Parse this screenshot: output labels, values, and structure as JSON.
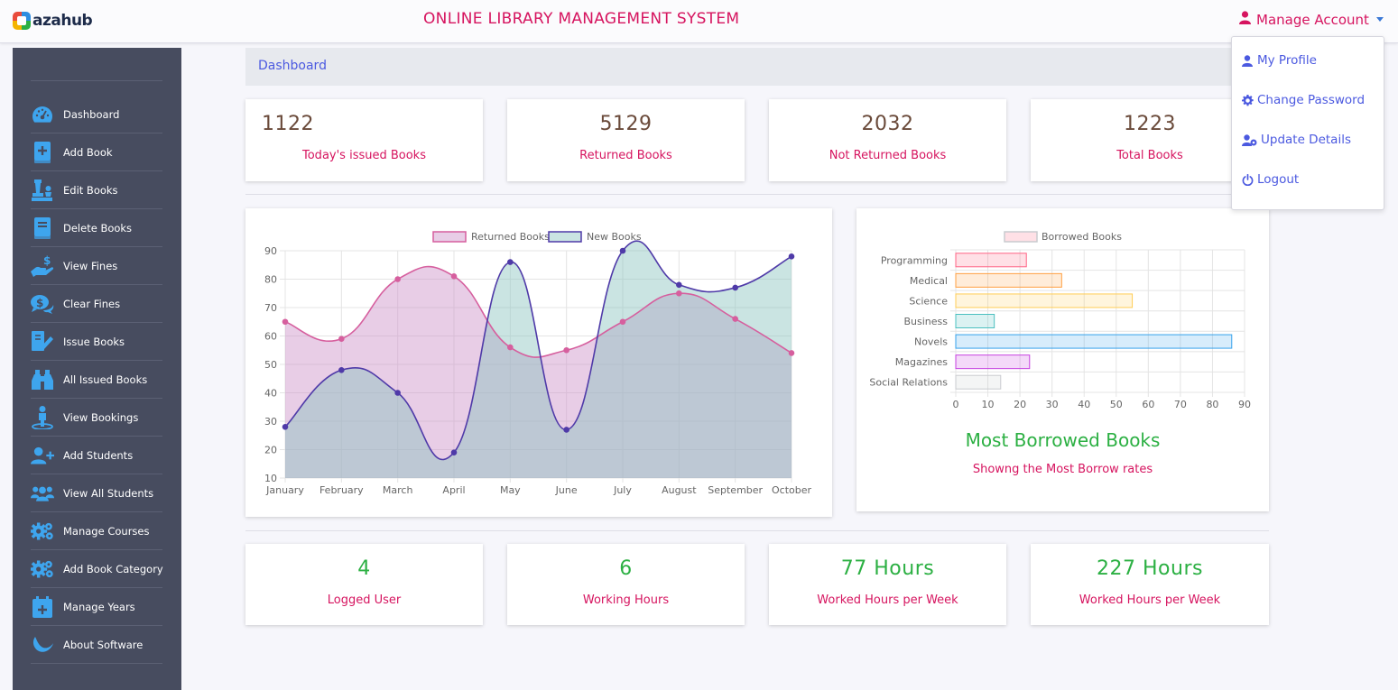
{
  "header": {
    "logo_text": "azahub",
    "app_title": "ONLINE LIBRARY MANAGEMENT SYSTEM",
    "manage_account": "Manage Account"
  },
  "dropdown": {
    "items": [
      {
        "label": "My Profile",
        "icon": "user-icon"
      },
      {
        "label": "Change Password",
        "icon": "gear-icon"
      },
      {
        "label": "Update Details",
        "icon": "user-cog-icon"
      },
      {
        "label": "Logout",
        "icon": "power-icon"
      }
    ]
  },
  "sidebar": {
    "items": [
      {
        "label": "Dashboard",
        "icon": "speedometer-icon"
      },
      {
        "label": "Add Book",
        "icon": "book-plus-icon"
      },
      {
        "label": "Edit Books",
        "icon": "chess-pieces-icon"
      },
      {
        "label": "Delete Books",
        "icon": "book-icon"
      },
      {
        "label": "View Fines",
        "icon": "hand-dollar-icon"
      },
      {
        "label": "Clear Fines",
        "icon": "dollar-chat-icon"
      },
      {
        "label": "Issue Books",
        "icon": "book-pen-icon"
      },
      {
        "label": "All Issued Books",
        "icon": "binoculars-icon"
      },
      {
        "label": "View Bookings",
        "icon": "person-location-icon"
      },
      {
        "label": "Add Students",
        "icon": "user-plus-icon"
      },
      {
        "label": "View All Students",
        "icon": "users-icon"
      },
      {
        "label": "Manage Courses",
        "icon": "gears-icon"
      },
      {
        "label": "Add Book Category",
        "icon": "gears-icon"
      },
      {
        "label": "Manage Years",
        "icon": "calendar-plus-icon"
      },
      {
        "label": "About Software",
        "icon": "wave-icon"
      }
    ],
    "icon_color": "#3ea5ee"
  },
  "breadcrumb": "Dashboard",
  "stats_top": [
    {
      "value": "1122",
      "label": "Today's issued Books"
    },
    {
      "value": "5129",
      "label": "Returned Books"
    },
    {
      "value": "2032",
      "label": "Not Returned Books"
    },
    {
      "value": "1223",
      "label": "Total Books"
    }
  ],
  "stats_bottom": [
    {
      "value": "4",
      "label": "Logged User"
    },
    {
      "value": "6",
      "label": "Working Hours"
    },
    {
      "value": "77 Hours",
      "label": "Worked Hours per Week"
    },
    {
      "value": "227 Hours",
      "label": "Worked Hours per Week"
    }
  ],
  "bar_panel": {
    "title": "Most Borrowed Books",
    "subtitle": "Showng the Most Borrow rates"
  },
  "colors": {
    "accent_pink": "#d6145f",
    "accent_green": "#2cb043",
    "accent_blue": "#4b59e0",
    "sidebar_bg": "#474c5f"
  },
  "chart_data": [
    {
      "type": "area",
      "categories": [
        "January",
        "February",
        "March",
        "April",
        "May",
        "June",
        "July",
        "August",
        "September",
        "October"
      ],
      "series": [
        {
          "name": "Returned Books",
          "values": [
            65,
            59,
            80,
            81,
            56,
            55,
            65,
            75,
            66,
            54
          ],
          "stroke": "#d65f9e",
          "fill": "rgba(205,145,200,0.45)"
        },
        {
          "name": "New Books",
          "values": [
            28,
            48,
            40,
            19,
            86,
            27,
            90,
            78,
            77,
            88
          ],
          "stroke": "#4f3aa8",
          "fill": "rgba(137,196,190,0.45)"
        }
      ],
      "ylim": [
        10,
        90
      ],
      "yticks": [
        10,
        20,
        30,
        40,
        50,
        60,
        70,
        80,
        90
      ],
      "grid": true,
      "legend": "top-center"
    },
    {
      "type": "bar",
      "orientation": "horizontal",
      "categories": [
        "Programming",
        "Medical",
        "Science",
        "Business",
        "Novels",
        "Magazines",
        "Social Relations"
      ],
      "series": [
        {
          "name": "Borrowed Books",
          "values": [
            22,
            33,
            55,
            12,
            86,
            23,
            14
          ]
        }
      ],
      "bar_colors": [
        "#ff6384",
        "#ff9f40",
        "#ffcd56",
        "#4bc0c0",
        "#36a2eb",
        "#c640e0",
        "#c9cbcf"
      ],
      "xlim": [
        0,
        90
      ],
      "xticks": [
        0,
        10,
        20,
        30,
        40,
        50,
        60,
        70,
        80,
        90
      ],
      "grid": true,
      "legend": "top-center"
    }
  ]
}
